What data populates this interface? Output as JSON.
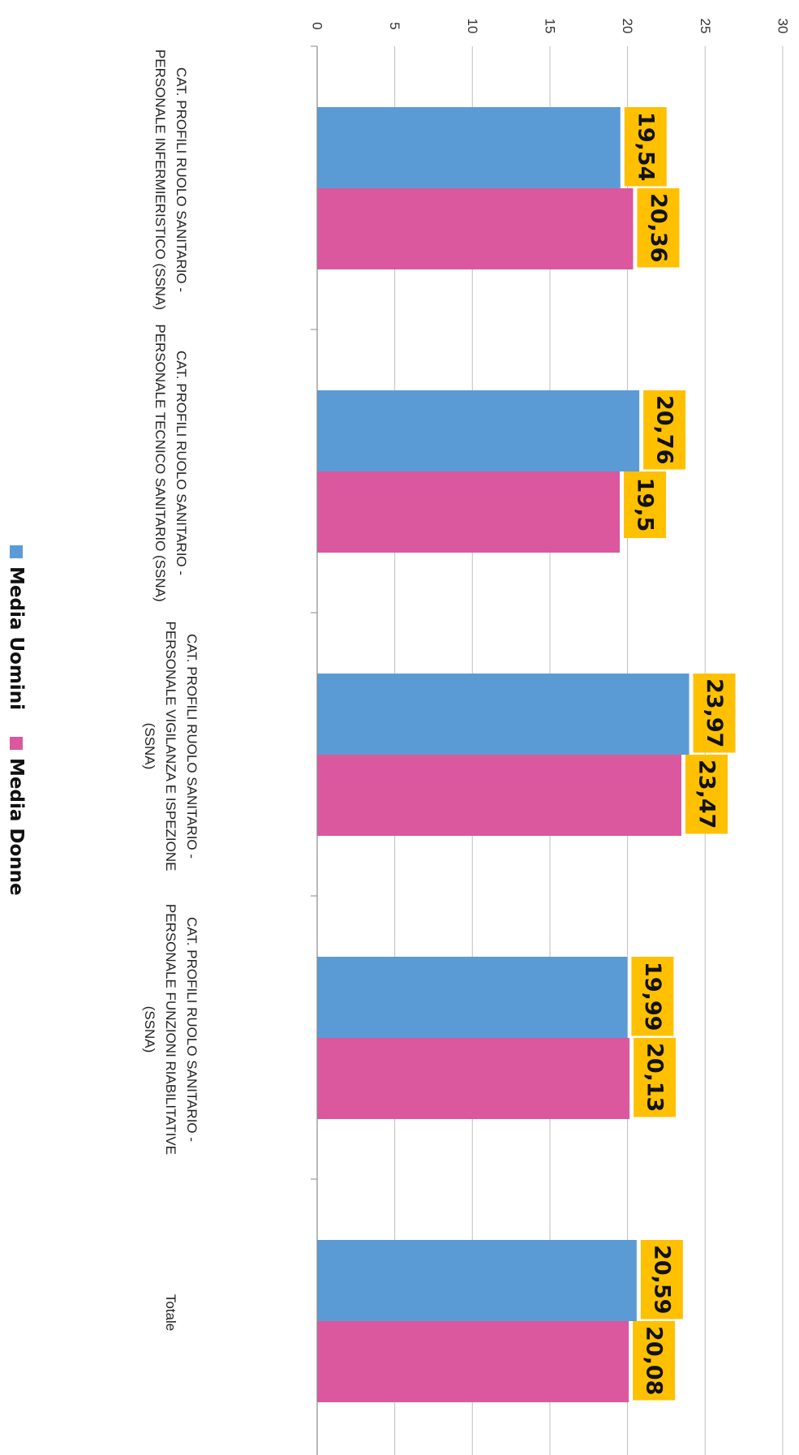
{
  "chart_data": {
    "type": "bar",
    "orientation": "horizontal",
    "categories": [
      [
        "CAT. PROFILI RUOLO SANITARIO -",
        "PERSONALE INFERMIERISTICO (SSNA)"
      ],
      [
        "CAT. PROFILI RUOLO SANITARIO -",
        "PERSONALE TECNICO SANITARIO (SSNA)"
      ],
      [
        "CAT. PROFILI RUOLO SANITARIO -",
        "PERSONALE VIGILANZA E ISPEZIONE",
        "(SSNA)"
      ],
      [
        "CAT. PROFILI RUOLO SANITARIO -",
        "PERSONALE FUNZIONI RIABILITATIVE",
        "(SSNA)"
      ],
      [
        "Totale"
      ]
    ],
    "series": [
      {
        "name": "Media Uomini",
        "color": "#5B9BD5",
        "values": [
          19.54,
          20.76,
          23.97,
          19.99,
          20.59
        ],
        "labels": [
          "19,54",
          "20,76",
          "23,97",
          "19,99",
          "20,59"
        ]
      },
      {
        "name": "Media Donne",
        "color": "#DB579E",
        "values": [
          20.36,
          19.5,
          23.47,
          20.13,
          20.08
        ],
        "labels": [
          "20,36",
          "19,5",
          "23,47",
          "20,13",
          "20,08"
        ]
      }
    ],
    "xlim": [
      0,
      30
    ],
    "ticks": [
      0,
      5,
      10,
      15,
      20,
      25,
      30
    ],
    "tick_labels": [
      "0",
      "5",
      "10",
      "15",
      "20",
      "25",
      "30"
    ],
    "grid": true,
    "legend": "left",
    "label_background": "#FFC000",
    "rotation": "90deg-clockwise"
  }
}
